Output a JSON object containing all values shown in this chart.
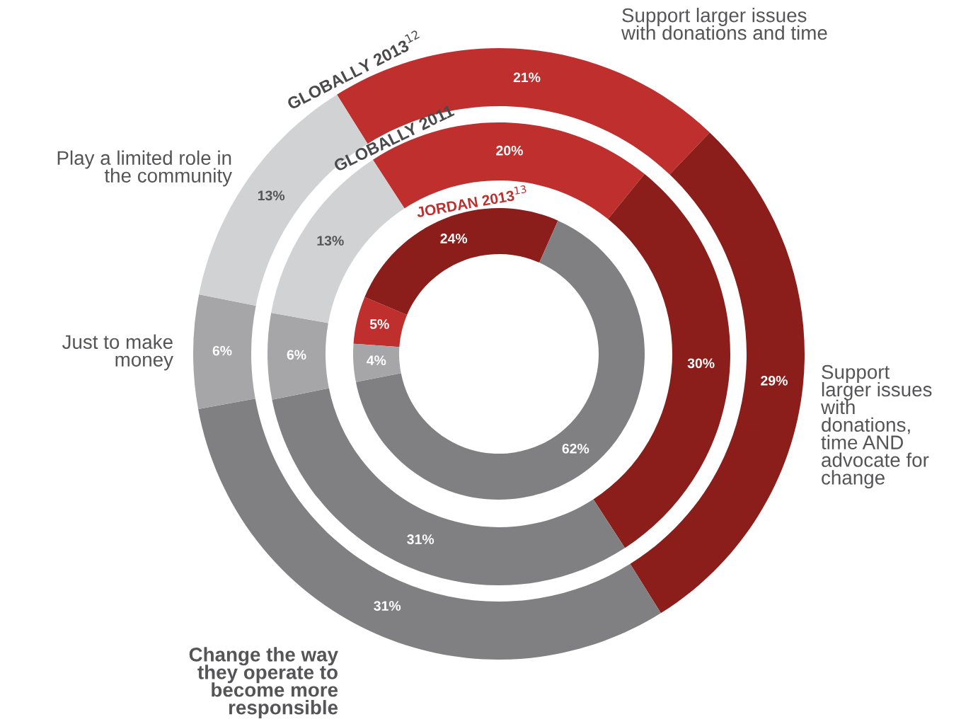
{
  "chart_data": {
    "type": "donut",
    "categories": [
      "Support larger issues\nwith donations and time",
      "Support\nlarger issues\nwith\ndonations,\ntime AND\nadvocate for\nchange",
      "Change the way\nthey operate to\nbecome more\nresponsible",
      "Just to make\nmoney",
      "Play a limited role in\nthe community"
    ],
    "colors": [
      "#bf2f2d",
      "#8b1e1a",
      "#808083",
      "#a6a6a9",
      "#d1d2d4"
    ],
    "series": [
      {
        "name": "GLOBALLY 2013$^{12}$",
        "values": [
          21,
          29,
          31,
          6,
          13
        ],
        "value_labels": [
          "21%",
          "29%",
          "31%",
          "6%",
          "13%"
        ]
      },
      {
        "name": "GLOBALLY 2011",
        "values": [
          20,
          30,
          31,
          6,
          13
        ],
        "value_labels": [
          "20%",
          "30%",
          "31%",
          "6%",
          "13%"
        ]
      },
      {
        "name": "JORDAN 2013$^{13}$",
        "values": [
          5,
          24,
          62,
          4,
          null
        ],
        "value_labels": [
          "5%",
          "24%",
          "62%",
          "4%",
          null
        ]
      }
    ],
    "legend": false
  }
}
